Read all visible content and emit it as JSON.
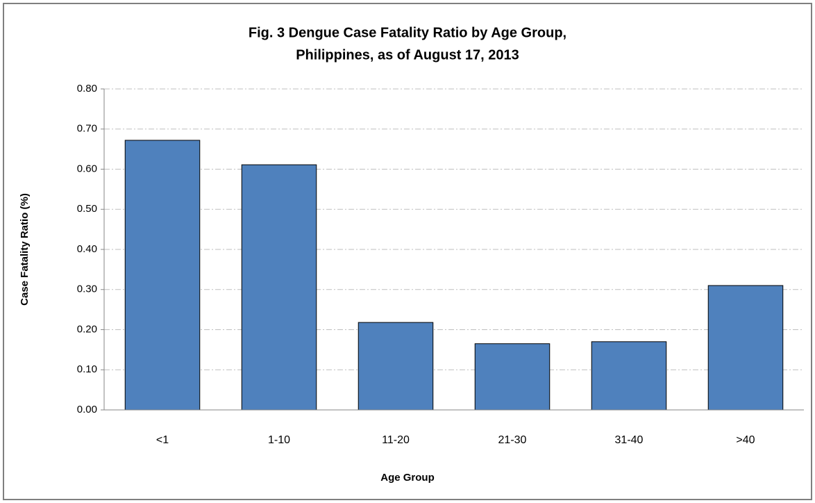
{
  "chart_data": {
    "type": "bar",
    "title": [
      "Fig. 3  Dengue Case Fatality Ratio by Age Group,",
      "Philippines, as of August 17, 2013"
    ],
    "xlabel": "Age Group",
    "ylabel": "Case Fatality Ratio (%)",
    "categories": [
      "<1",
      "1-10",
      "11-20",
      "21-30",
      "31-40",
      ">40"
    ],
    "values": [
      0.672,
      0.611,
      0.218,
      0.165,
      0.17,
      0.31
    ],
    "color": "#4f81bd",
    "ylim": [
      0,
      0.8
    ],
    "yticks": [
      {
        "value": 0,
        "label": "0.00"
      },
      {
        "value": 0.1,
        "label": "0.10"
      },
      {
        "value": 0.2,
        "label": "0.20"
      },
      {
        "value": 0.3,
        "label": "0.30"
      },
      {
        "value": 0.4,
        "label": "0.40"
      },
      {
        "value": 0.5,
        "label": "0.50"
      },
      {
        "value": 0.6,
        "label": "0.60"
      },
      {
        "value": 0.7,
        "label": "0.70"
      },
      {
        "value": 0.8,
        "label": "0.80"
      }
    ],
    "grid": true
  }
}
